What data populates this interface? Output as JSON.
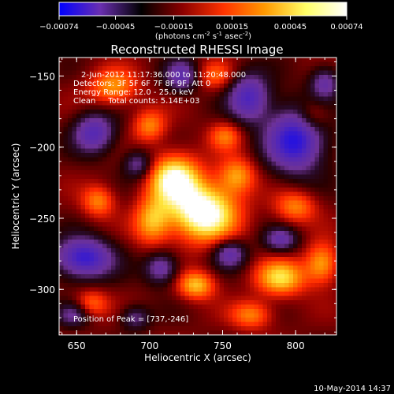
{
  "chart_data": {
    "type": "heatmap",
    "title": "Reconstructed RHESSI Image",
    "xlabel": "Heliocentric X (arcsec)",
    "ylabel": "Heliocentric Y (arcsec)",
    "xlim": [
      638,
      828
    ],
    "ylim": [
      -332,
      -137
    ],
    "x_ticks": [
      650,
      700,
      750,
      800
    ],
    "y_ticks": [
      -150,
      -200,
      -250,
      -300
    ],
    "x_tick_labels": [
      "650",
      "700",
      "750",
      "800"
    ],
    "y_tick_labels": [
      "-150",
      "-200",
      "-250",
      "-300"
    ],
    "colorbar": {
      "min": -0.00074,
      "max": 0.00074,
      "ticks": [
        -0.00074,
        -0.00045,
        -0.00015,
        0.00015,
        0.00045,
        0.00074
      ],
      "tick_labels": [
        "-0.00074",
        "-0.00045",
        "-0.00015",
        "0.00015",
        "0.00045",
        "0.00074"
      ],
      "unit_label": "(photons cm-2 s-1 asec-2)",
      "colormap": [
        "#0000ff",
        "#6a2fb0",
        "#000000",
        "#8b0000",
        "#ff3300",
        "#ff9900",
        "#ffff66",
        "#ffffff"
      ]
    },
    "overlay_text": [
      "2-Jun-2012 11:17:36.000 to 11:20:48.000",
      "Detectors: 3F 5F 6F 7F 8F 9F, Att 0",
      "Energy Range: 12.0 - 25.0 keV",
      "Clean     Total counts: 5.14E+03"
    ],
    "peak": {
      "label": "Position of Peak = [737,-246]",
      "x": 737,
      "y": -246,
      "value": 0.00074
    },
    "sources": [
      {
        "x": 737,
        "y": -246,
        "v": 1.0,
        "sx": 16,
        "sy": 14
      },
      {
        "x": 717,
        "y": -222,
        "v": 0.85,
        "sx": 12,
        "sy": 12
      },
      {
        "x": 702,
        "y": -252,
        "v": 0.55,
        "sx": 9,
        "sy": 12
      },
      {
        "x": 790,
        "y": -292,
        "v": 0.65,
        "sx": 12,
        "sy": 9
      },
      {
        "x": 818,
        "y": -282,
        "v": 0.55,
        "sx": 8,
        "sy": 10
      },
      {
        "x": 732,
        "y": -297,
        "v": 0.6,
        "sx": 9,
        "sy": 7
      },
      {
        "x": 760,
        "y": -220,
        "v": 0.5,
        "sx": 9,
        "sy": 9
      },
      {
        "x": 675,
        "y": -158,
        "v": 0.5,
        "sx": 12,
        "sy": 9
      },
      {
        "x": 700,
        "y": -185,
        "v": 0.45,
        "sx": 8,
        "sy": 8
      },
      {
        "x": 800,
        "y": -242,
        "v": 0.45,
        "sx": 10,
        "sy": 8
      },
      {
        "x": 665,
        "y": -238,
        "v": 0.45,
        "sx": 8,
        "sy": 8
      },
      {
        "x": 770,
        "y": -318,
        "v": 0.45,
        "sx": 10,
        "sy": 7
      },
      {
        "x": 660,
        "y": -310,
        "v": 0.4,
        "sx": 8,
        "sy": 7
      },
      {
        "x": 752,
        "y": -192,
        "v": 0.4,
        "sx": 8,
        "sy": 7
      },
      {
        "x": 812,
        "y": -178,
        "v": 0.35,
        "sx": 8,
        "sy": 8
      },
      {
        "x": 745,
        "y": -150,
        "v": 0.35,
        "sx": 9,
        "sy": 7
      },
      {
        "x": 800,
        "y": -195,
        "v": -0.9,
        "sx": 14,
        "sy": 16
      },
      {
        "x": 655,
        "y": -278,
        "v": -0.85,
        "sx": 14,
        "sy": 10
      },
      {
        "x": 768,
        "y": -165,
        "v": -0.7,
        "sx": 10,
        "sy": 12
      },
      {
        "x": 722,
        "y": -150,
        "v": -0.55,
        "sx": 8,
        "sy": 8
      },
      {
        "x": 662,
        "y": -190,
        "v": -0.65,
        "sx": 10,
        "sy": 10
      },
      {
        "x": 708,
        "y": -285,
        "v": -0.55,
        "sx": 8,
        "sy": 8
      },
      {
        "x": 755,
        "y": -275,
        "v": -0.55,
        "sx": 8,
        "sy": 7
      },
      {
        "x": 790,
        "y": -265,
        "v": -0.5,
        "sx": 8,
        "sy": 6
      },
      {
        "x": 820,
        "y": -155,
        "v": -0.5,
        "sx": 7,
        "sy": 8
      },
      {
        "x": 648,
        "y": -318,
        "v": -0.4,
        "sx": 8,
        "sy": 6
      },
      {
        "x": 690,
        "y": -320,
        "v": -0.4,
        "sx": 7,
        "sy": 6
      },
      {
        "x": 692,
        "y": -212,
        "v": -0.45,
        "sx": 7,
        "sy": 7
      }
    ]
  },
  "footer": {
    "date": "10-May-2014 14:37"
  }
}
